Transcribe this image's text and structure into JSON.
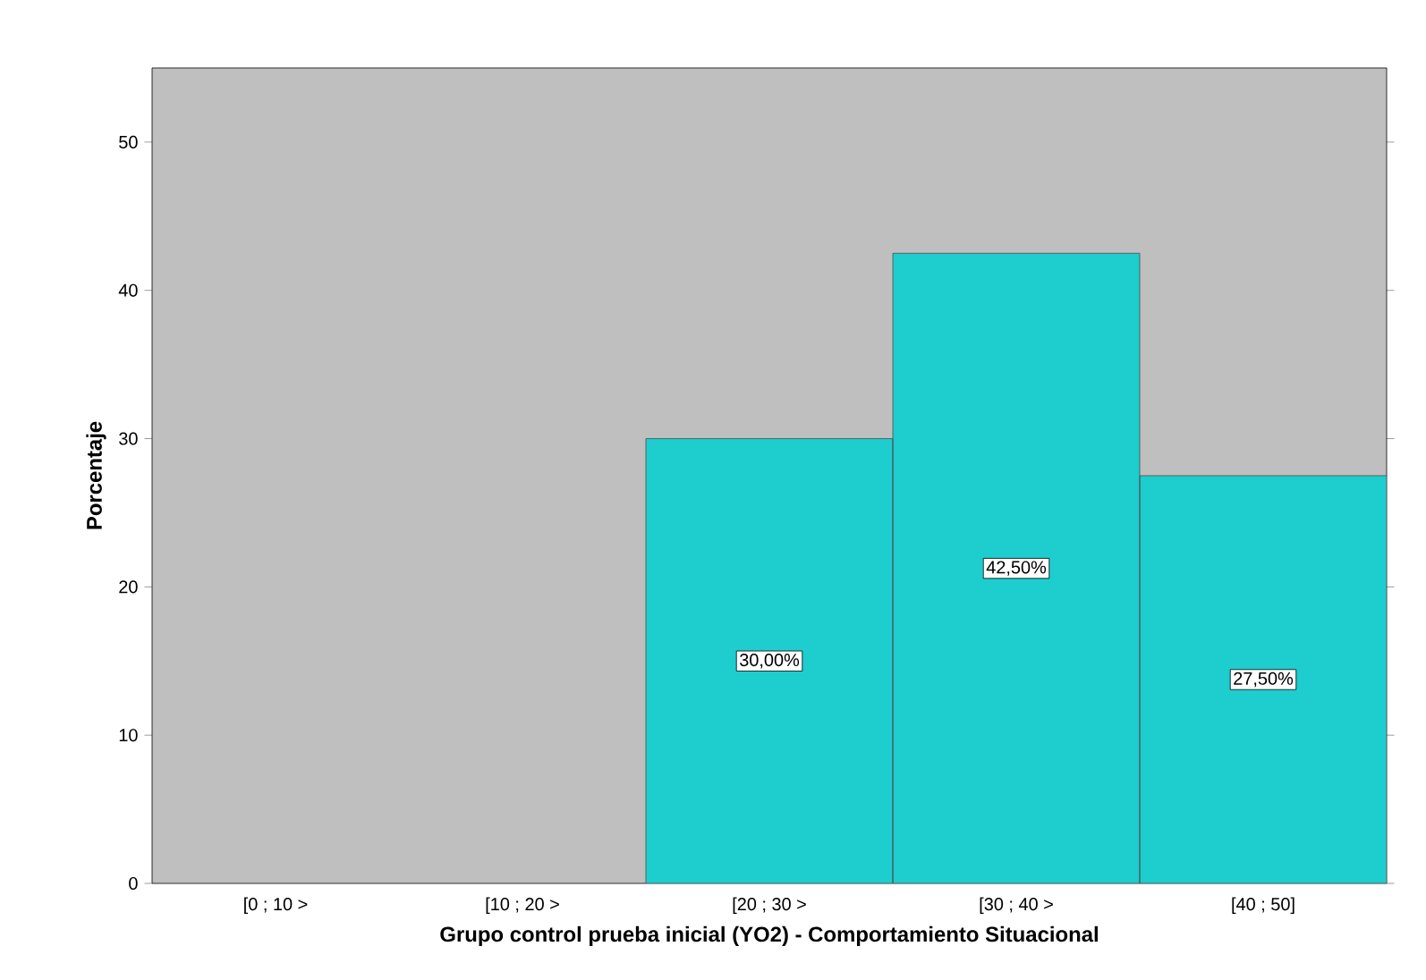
{
  "chart_data": {
    "type": "bar",
    "xlabel": "Grupo control prueba inicial (YO2) - Comportamiento Situacional",
    "ylabel": "Porcentaje",
    "categories": [
      "[0 ; 10 >",
      "[10 ; 20 >",
      "[20 ; 30 >",
      "[30 ; 40 >",
      "[40 ; 50]"
    ],
    "values": [
      null,
      null,
      30,
      42.5,
      27.5
    ],
    "value_labels": [
      null,
      null,
      "30,00%",
      "42,50%",
      "27,50%"
    ],
    "color": "#1ecdcd",
    "ylim": [
      0,
      55
    ],
    "yticks": [
      0,
      10,
      20,
      30,
      40,
      50
    ],
    "grid": false
  }
}
